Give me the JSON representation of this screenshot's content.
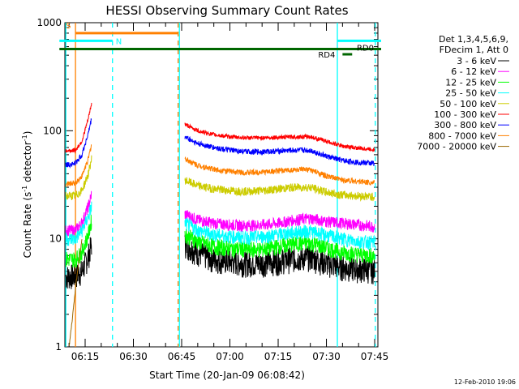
{
  "chart_data": {
    "type": "line",
    "title": "HESSI Observing Summary Count Rates",
    "xlabel": "Start Time (20-Jan-09 06:08:42)",
    "ylabel_main": "Count Rate (s",
    "ylabel_sup": "-1",
    "ylabel_mid": " detector",
    "ylabel_sup2": "-1",
    "ylabel_end": ")",
    "yscale": "log",
    "ylim": [
      1,
      1000
    ],
    "xlim_min": [
      368.7,
      466
    ],
    "y_ticks": [
      "1",
      "10",
      "100",
      "1000"
    ],
    "x_ticks": [
      {
        "label": "06:15",
        "m": 375
      },
      {
        "label": "06:30",
        "m": 390
      },
      {
        "label": "06:45",
        "m": 405
      },
      {
        "label": "07:00",
        "m": 420
      },
      {
        "label": "07:15",
        "m": 435
      },
      {
        "label": "07:30",
        "m": 450
      },
      {
        "label": "07:45",
        "m": 465
      }
    ],
    "legend_header": [
      "Det 1,3,4,5,6,9,",
      "FDecim 1, Att 0"
    ],
    "series": [
      {
        "name": "3 - 6 keV",
        "color": "#000000",
        "x": [
          369,
          372,
          374,
          376,
          377
        ],
        "y": [
          4.5,
          4.6,
          5,
          7,
          9
        ],
        "x2": [
          406,
          410,
          415,
          420,
          425,
          430,
          435,
          440,
          445,
          450,
          455,
          460,
          465
        ],
        "y2": [
          9,
          7.5,
          6.5,
          6.2,
          6.0,
          6.0,
          6.3,
          6.6,
          6.8,
          6.0,
          5.5,
          5.3,
          5.2
        ]
      },
      {
        "name": "6 - 12 keV",
        "color": "#ff00ff",
        "x": [
          369,
          372,
          374,
          376,
          377
        ],
        "y": [
          12,
          12,
          14,
          20,
          26
        ],
        "x2": [
          406,
          410,
          415,
          420,
          425,
          430,
          435,
          440,
          445,
          450,
          455,
          460,
          465
        ],
        "y2": [
          17,
          15,
          14,
          13.5,
          13.3,
          13.5,
          14,
          15,
          15.5,
          14.5,
          14,
          13.5,
          13
        ]
      },
      {
        "name": "12 - 25 keV",
        "color": "#00ff00",
        "x": [
          369,
          372,
          374,
          376,
          377
        ],
        "y": [
          6.5,
          6.5,
          7.5,
          11,
          15
        ],
        "x2": [
          406,
          410,
          415,
          420,
          425,
          430,
          435,
          440,
          445,
          450,
          455,
          460,
          465
        ],
        "y2": [
          11,
          9.5,
          8.5,
          8.2,
          8.0,
          8.0,
          8.5,
          9.0,
          9.2,
          8.3,
          7.5,
          7.2,
          7.0
        ]
      },
      {
        "name": "25 - 50 keV",
        "color": "#00ffff",
        "x": [
          369,
          372,
          374,
          376,
          377
        ],
        "y": [
          10,
          10,
          12,
          16,
          20
        ],
        "x2": [
          406,
          410,
          415,
          420,
          425,
          430,
          435,
          440,
          445,
          450,
          455,
          460,
          465
        ],
        "y2": [
          14,
          12,
          11,
          10.5,
          10.3,
          10.5,
          11,
          11.5,
          11.8,
          10.8,
          10,
          9.5,
          9.3
        ]
      },
      {
        "name": "50 - 100 keV",
        "color": "#cccc00",
        "x": [
          369,
          372,
          374,
          376,
          377
        ],
        "y": [
          25,
          25,
          28,
          40,
          55
        ],
        "x2": [
          406,
          410,
          415,
          420,
          425,
          430,
          435,
          440,
          445,
          450,
          455,
          460,
          465
        ],
        "y2": [
          35,
          31,
          29,
          28,
          27.5,
          28,
          29,
          30,
          30,
          27,
          25.5,
          25,
          24.5
        ]
      },
      {
        "name": "100 - 300 keV",
        "color": "#ff0000",
        "x": [
          369,
          372,
          374,
          376,
          377
        ],
        "y": [
          65,
          66,
          80,
          130,
          180
        ],
        "x2": [
          406,
          410,
          415,
          420,
          425,
          430,
          435,
          440,
          445,
          450,
          455,
          460,
          465
        ],
        "y2": [
          115,
          100,
          92,
          88,
          86,
          86,
          87,
          88,
          88,
          80,
          72,
          69,
          67
        ]
      },
      {
        "name": "300 - 800 keV",
        "color": "#0000ff",
        "x": [
          369,
          372,
          374,
          376,
          377
        ],
        "y": [
          48,
          50,
          60,
          95,
          130
        ],
        "x2": [
          406,
          410,
          415,
          420,
          425,
          430,
          435,
          440,
          445,
          450,
          455,
          460,
          465
        ],
        "y2": [
          88,
          76,
          70,
          66,
          64,
          64,
          65,
          66,
          66,
          58,
          53,
          51,
          50
        ]
      },
      {
        "name": "800 - 7000 keV",
        "color": "#ff8000",
        "x": [
          369,
          372,
          374,
          376,
          377
        ],
        "y": [
          32,
          33,
          38,
          55,
          75
        ],
        "x2": [
          406,
          410,
          415,
          420,
          425,
          430,
          435,
          440,
          445,
          450,
          455,
          460,
          465
        ],
        "y2": [
          55,
          48,
          44,
          42,
          41,
          41.5,
          42.5,
          43.5,
          43.5,
          38,
          35,
          34,
          33
        ]
      },
      {
        "name": "7000 - 20000 keV",
        "color": "#996600",
        "x": [
          370,
          371,
          372,
          373,
          374
        ],
        "y": [
          1,
          1.8,
          3.5,
          6,
          10
        ],
        "x2": [],
        "y2": []
      }
    ],
    "vlines": [
      {
        "m": 369.0,
        "color": "#00ffff",
        "dash": false
      },
      {
        "m": 372.0,
        "color": "#ff8000",
        "dash": false
      },
      {
        "m": 383.5,
        "color": "#00ffff",
        "dash": true
      },
      {
        "m": 403.9,
        "color": "#ff8000",
        "dash": true
      },
      {
        "m": 404.3,
        "color": "#00ffff",
        "dash": false
      },
      {
        "m": 453.4,
        "color": "#00ffff",
        "dash": false
      },
      {
        "m": 465.2,
        "color": "#00ffff",
        "dash": true
      }
    ],
    "bars": [
      {
        "label": "S",
        "color": "#ff8000",
        "m0": 372.0,
        "m1": 403.9,
        "yv": 800
      },
      {
        "label": "N",
        "color": "#00ffff",
        "m0": 367.0,
        "m1": 383.5,
        "yv": 680
      },
      {
        "label": "",
        "color": "#006600",
        "m0": 367.0,
        "m1": 467.0,
        "yv": 570
      },
      {
        "label": "RD0",
        "color": "#00ffff",
        "m0": 453.4,
        "m1": 467.0,
        "yv": 680
      },
      {
        "label": "RD4",
        "color": "#006600",
        "m0": 455.0,
        "m1": 458.0,
        "yv": 510
      }
    ],
    "footer_date": "12-Feb-2010 19:06"
  }
}
